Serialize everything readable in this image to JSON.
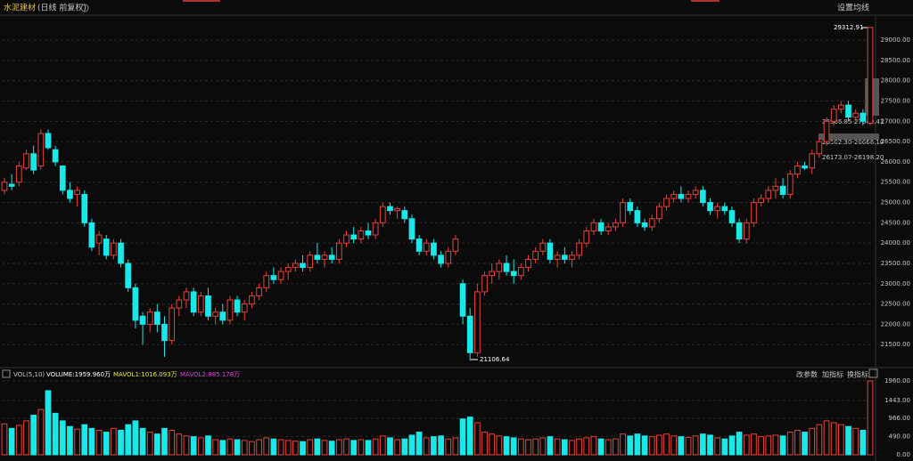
{
  "chart_data": {
    "type": "candlestick",
    "title": "水泥建材",
    "subtitle": "(日线 前复权)",
    "settings_button": "设置均线",
    "up_color": "#e8413a",
    "down_color": "#19e8e8",
    "ylim": [
      21000,
      29550
    ],
    "yticks": [
      {
        "value": 21500,
        "label": "21500.00"
      },
      {
        "value": 22000,
        "label": "22000.00"
      },
      {
        "value": 22500,
        "label": "22500.00"
      },
      {
        "value": 23000,
        "label": "23000.00"
      },
      {
        "value": 23500,
        "label": "23500.00"
      },
      {
        "value": 24000,
        "label": "24000.00"
      },
      {
        "value": 24500,
        "label": "24500.00"
      },
      {
        "value": 25000,
        "label": "25000.00"
      },
      {
        "value": 25500,
        "label": "25500.00"
      },
      {
        "value": 26000,
        "label": "26000.00"
      },
      {
        "value": 26500,
        "label": "26500.00"
      },
      {
        "value": 27000,
        "label": "27000.00"
      },
      {
        "value": 27500,
        "label": "27500.00"
      },
      {
        "value": 28000,
        "label": "28000.00"
      },
      {
        "value": 28500,
        "label": "28500.00"
      },
      {
        "value": 29000,
        "label": "29000.00"
      }
    ],
    "max_label": "29312.91",
    "min_label": "21106.64",
    "zone_labels": [
      "26986.85-27040.41",
      "26502.30-26666.10",
      "26173.07-26198.20"
    ],
    "volume_panel": {
      "name": "VOL(5,10)",
      "items": [
        "VOLUME:1959.960万",
        "MAVOL1:1016.093万",
        "MAVOL2:885.178万"
      ],
      "buttons": [
        "改参数",
        "加指标",
        "换指标"
      ],
      "ylim": [
        0,
        1960
      ],
      "yticks": [
        {
          "value": 0,
          "label": "0.00"
        },
        {
          "value": 490,
          "label": "490.00"
        },
        {
          "value": 966,
          "label": "966.00"
        },
        {
          "value": 1443,
          "label": "1443.00"
        },
        {
          "value": 1960,
          "label": "1960.00"
        }
      ]
    },
    "candles": [
      [
        25300,
        25600,
        25200,
        25500,
        820
      ],
      [
        25450,
        25700,
        25300,
        25400,
        700
      ],
      [
        25500,
        26000,
        25400,
        25900,
        780
      ],
      [
        25850,
        26300,
        25800,
        26200,
        900
      ],
      [
        26200,
        26400,
        25700,
        25800,
        1050
      ],
      [
        25900,
        26800,
        25800,
        26700,
        1200
      ],
      [
        26700,
        26800,
        26300,
        26350,
        1700
      ],
      [
        26300,
        26400,
        25900,
        26000,
        1100
      ],
      [
        25900,
        25900,
        25200,
        25300,
        900
      ],
      [
        25300,
        25500,
        25000,
        25100,
        750
      ],
      [
        25200,
        25400,
        24900,
        25300,
        680
      ],
      [
        25200,
        25300,
        24400,
        24500,
        800
      ],
      [
        24500,
        24600,
        23800,
        23900,
        700
      ],
      [
        24000,
        24300,
        23700,
        24200,
        650
      ],
      [
        24100,
        24200,
        23600,
        23700,
        600
      ],
      [
        23700,
        24100,
        23600,
        24000,
        700
      ],
      [
        24000,
        24100,
        23400,
        23500,
        650
      ],
      [
        23500,
        23600,
        22800,
        22900,
        800
      ],
      [
        22900,
        23000,
        21900,
        22100,
        900
      ],
      [
        22200,
        22300,
        21500,
        22000,
        700
      ],
      [
        22000,
        22400,
        21800,
        22300,
        600
      ],
      [
        22300,
        22500,
        21800,
        22000,
        550
      ],
      [
        22000,
        22200,
        21200,
        21600,
        700
      ],
      [
        21600,
        22500,
        21500,
        22400,
        650
      ],
      [
        22400,
        22700,
        22200,
        22600,
        550
      ],
      [
        22600,
        22900,
        22400,
        22800,
        500
      ],
      [
        22800,
        22900,
        22200,
        22300,
        480
      ],
      [
        22300,
        22800,
        22200,
        22700,
        450
      ],
      [
        22700,
        22900,
        22100,
        22200,
        500
      ],
      [
        22200,
        22400,
        22000,
        22300,
        400
      ],
      [
        22300,
        22500,
        22000,
        22100,
        380
      ],
      [
        22100,
        22700,
        22000,
        22600,
        420
      ],
      [
        22600,
        22700,
        22200,
        22300,
        400
      ],
      [
        22300,
        22600,
        22100,
        22500,
        380
      ],
      [
        22500,
        22800,
        22400,
        22700,
        350
      ],
      [
        22700,
        23000,
        22600,
        22900,
        400
      ],
      [
        22900,
        23300,
        22800,
        23200,
        450
      ],
      [
        23200,
        23400,
        23000,
        23100,
        420
      ],
      [
        23100,
        23400,
        23000,
        23300,
        400
      ],
      [
        23300,
        23500,
        23100,
        23400,
        380
      ],
      [
        23400,
        23600,
        23300,
        23500,
        360
      ],
      [
        23500,
        23700,
        23300,
        23400,
        350
      ],
      [
        23400,
        23800,
        23300,
        23700,
        400
      ],
      [
        23700,
        24000,
        23500,
        23600,
        420
      ],
      [
        23600,
        23800,
        23400,
        23700,
        380
      ],
      [
        23700,
        23900,
        23500,
        23600,
        360
      ],
      [
        23600,
        24100,
        23500,
        24000,
        400
      ],
      [
        24000,
        24300,
        23900,
        24200,
        420
      ],
      [
        24200,
        24400,
        24000,
        24100,
        380
      ],
      [
        24100,
        24400,
        24000,
        24300,
        400
      ],
      [
        24300,
        24500,
        24100,
        24200,
        380
      ],
      [
        24200,
        24600,
        24100,
        24500,
        420
      ],
      [
        24500,
        25000,
        24400,
        24900,
        500
      ],
      [
        24900,
        25000,
        24700,
        24800,
        450
      ],
      [
        24800,
        24900,
        24600,
        24850,
        400
      ],
      [
        24800,
        24900,
        24500,
        24600,
        420
      ],
      [
        24600,
        24700,
        24000,
        24100,
        520
      ],
      [
        24100,
        24200,
        23700,
        23800,
        600
      ],
      [
        23800,
        24100,
        23700,
        24000,
        450
      ],
      [
        24000,
        24100,
        23600,
        23700,
        480
      ],
      [
        23700,
        23800,
        23400,
        23500,
        500
      ],
      [
        23500,
        23900,
        23400,
        23800,
        420
      ],
      [
        23800,
        24200,
        23700,
        24100,
        450
      ],
      [
        23000,
        23100,
        22000,
        22200,
        950
      ],
      [
        22200,
        22400,
        21106.64,
        21300,
        1000
      ],
      [
        21300,
        23000,
        21200,
        22800,
        850
      ],
      [
        22800,
        23300,
        22700,
        23200,
        600
      ],
      [
        23200,
        23500,
        23000,
        23300,
        550
      ],
      [
        23300,
        23600,
        23100,
        23500,
        500
      ],
      [
        23500,
        23700,
        23200,
        23300,
        480
      ],
      [
        23300,
        23600,
        23000,
        23200,
        450
      ],
      [
        23200,
        23500,
        23100,
        23400,
        420
      ],
      [
        23400,
        23700,
        23300,
        23600,
        400
      ],
      [
        23600,
        23900,
        23500,
        23800,
        420
      ],
      [
        23800,
        24100,
        23700,
        24000,
        450
      ],
      [
        24000,
        24100,
        23500,
        23600,
        480
      ],
      [
        23600,
        23800,
        23400,
        23700,
        420
      ],
      [
        23700,
        23900,
        23500,
        23600,
        400
      ],
      [
        23600,
        23800,
        23400,
        23700,
        380
      ],
      [
        23700,
        24100,
        23600,
        24000,
        420
      ],
      [
        24000,
        24400,
        23900,
        24300,
        450
      ],
      [
        24300,
        24600,
        24200,
        24500,
        480
      ],
      [
        24500,
        24600,
        24200,
        24300,
        420
      ],
      [
        24300,
        24500,
        24200,
        24400,
        400
      ],
      [
        24400,
        24600,
        24300,
        24500,
        420
      ],
      [
        24500,
        25100,
        24400,
        25000,
        550
      ],
      [
        25000,
        25100,
        24700,
        24800,
        500
      ],
      [
        24800,
        24900,
        24400,
        24500,
        550
      ],
      [
        24500,
        24600,
        24300,
        24400,
        500
      ],
      [
        24400,
        24700,
        24300,
        24600,
        480
      ],
      [
        24600,
        25000,
        24500,
        24900,
        520
      ],
      [
        24900,
        25200,
        24800,
        25100,
        550
      ],
      [
        25100,
        25300,
        25000,
        25200,
        500
      ],
      [
        25200,
        25400,
        25000,
        25100,
        480
      ],
      [
        25100,
        25300,
        25000,
        25200,
        460
      ],
      [
        25200,
        25400,
        25100,
        25300,
        500
      ],
      [
        25300,
        25400,
        24900,
        25000,
        550
      ],
      [
        25000,
        25100,
        24700,
        24800,
        520
      ],
      [
        24800,
        25000,
        24600,
        24900,
        450
      ],
      [
        24900,
        25000,
        24700,
        24800,
        420
      ],
      [
        24800,
        24900,
        24400,
        24500,
        500
      ],
      [
        24500,
        24600,
        24000,
        24100,
        600
      ],
      [
        24100,
        24600,
        24000,
        24500,
        520
      ],
      [
        24500,
        25100,
        24400,
        25000,
        550
      ],
      [
        25000,
        25200,
        24900,
        25100,
        480
      ],
      [
        25100,
        25400,
        25000,
        25300,
        500
      ],
      [
        25300,
        25600,
        25100,
        25400,
        520
      ],
      [
        25400,
        25600,
        25100,
        25200,
        500
      ],
      [
        25200,
        25800,
        25100,
        25700,
        600
      ],
      [
        25700,
        26000,
        25600,
        25900,
        650
      ],
      [
        25900,
        26000,
        25800,
        25850,
        600
      ],
      [
        25850,
        26300,
        25700,
        26200,
        700
      ],
      [
        26200,
        26600,
        26100,
        26500,
        800
      ],
      [
        26500,
        27100,
        26400,
        27000,
        900
      ],
      [
        27000,
        27400,
        26900,
        27300,
        850
      ],
      [
        27300,
        27500,
        27200,
        27400,
        800
      ],
      [
        27400,
        27500,
        27000,
        27100,
        750
      ],
      [
        27100,
        27300,
        27000,
        27200,
        700
      ],
      [
        27200,
        27300,
        26900,
        27000,
        650
      ],
      [
        26950,
        29312.91,
        26900,
        29312.91,
        1959.96
      ]
    ]
  }
}
